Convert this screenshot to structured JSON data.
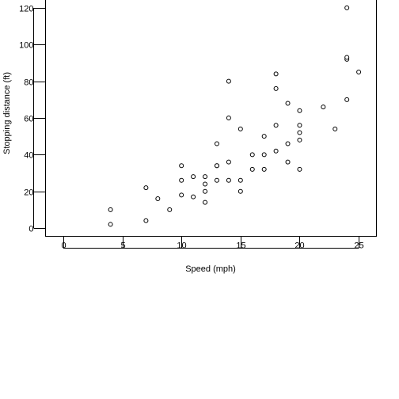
{
  "chart_data": {
    "type": "scatter",
    "title": "",
    "xlabel": "Speed (mph)",
    "ylabel": "Stopping distance (ft)",
    "xlim": [
      -1.5,
      26.5
    ],
    "ylim": [
      -4.5,
      124.5
    ],
    "xticks": [
      0,
      5,
      10,
      15,
      20,
      25
    ],
    "yticks": [
      0,
      20,
      40,
      60,
      80,
      100,
      120
    ],
    "grid": false,
    "marker_color": "#000000",
    "marker_fill": "#ffffff",
    "x": [
      4,
      4,
      7,
      7,
      8,
      9,
      10,
      10,
      10,
      11,
      11,
      12,
      12,
      12,
      12,
      13,
      13,
      13,
      13,
      14,
      14,
      14,
      14,
      15,
      15,
      15,
      16,
      16,
      17,
      17,
      17,
      18,
      18,
      18,
      18,
      19,
      19,
      19,
      20,
      20,
      20,
      20,
      20,
      22,
      23,
      24,
      24,
      24,
      24,
      25
    ],
    "y": [
      2,
      10,
      4,
      22,
      16,
      10,
      18,
      26,
      34,
      17,
      28,
      14,
      20,
      24,
      28,
      26,
      34,
      34,
      46,
      26,
      36,
      60,
      80,
      20,
      26,
      54,
      32,
      40,
      32,
      40,
      50,
      42,
      56,
      76,
      84,
      36,
      46,
      68,
      32,
      48,
      52,
      56,
      64,
      66,
      54,
      70,
      92,
      93,
      120,
      85
    ]
  }
}
